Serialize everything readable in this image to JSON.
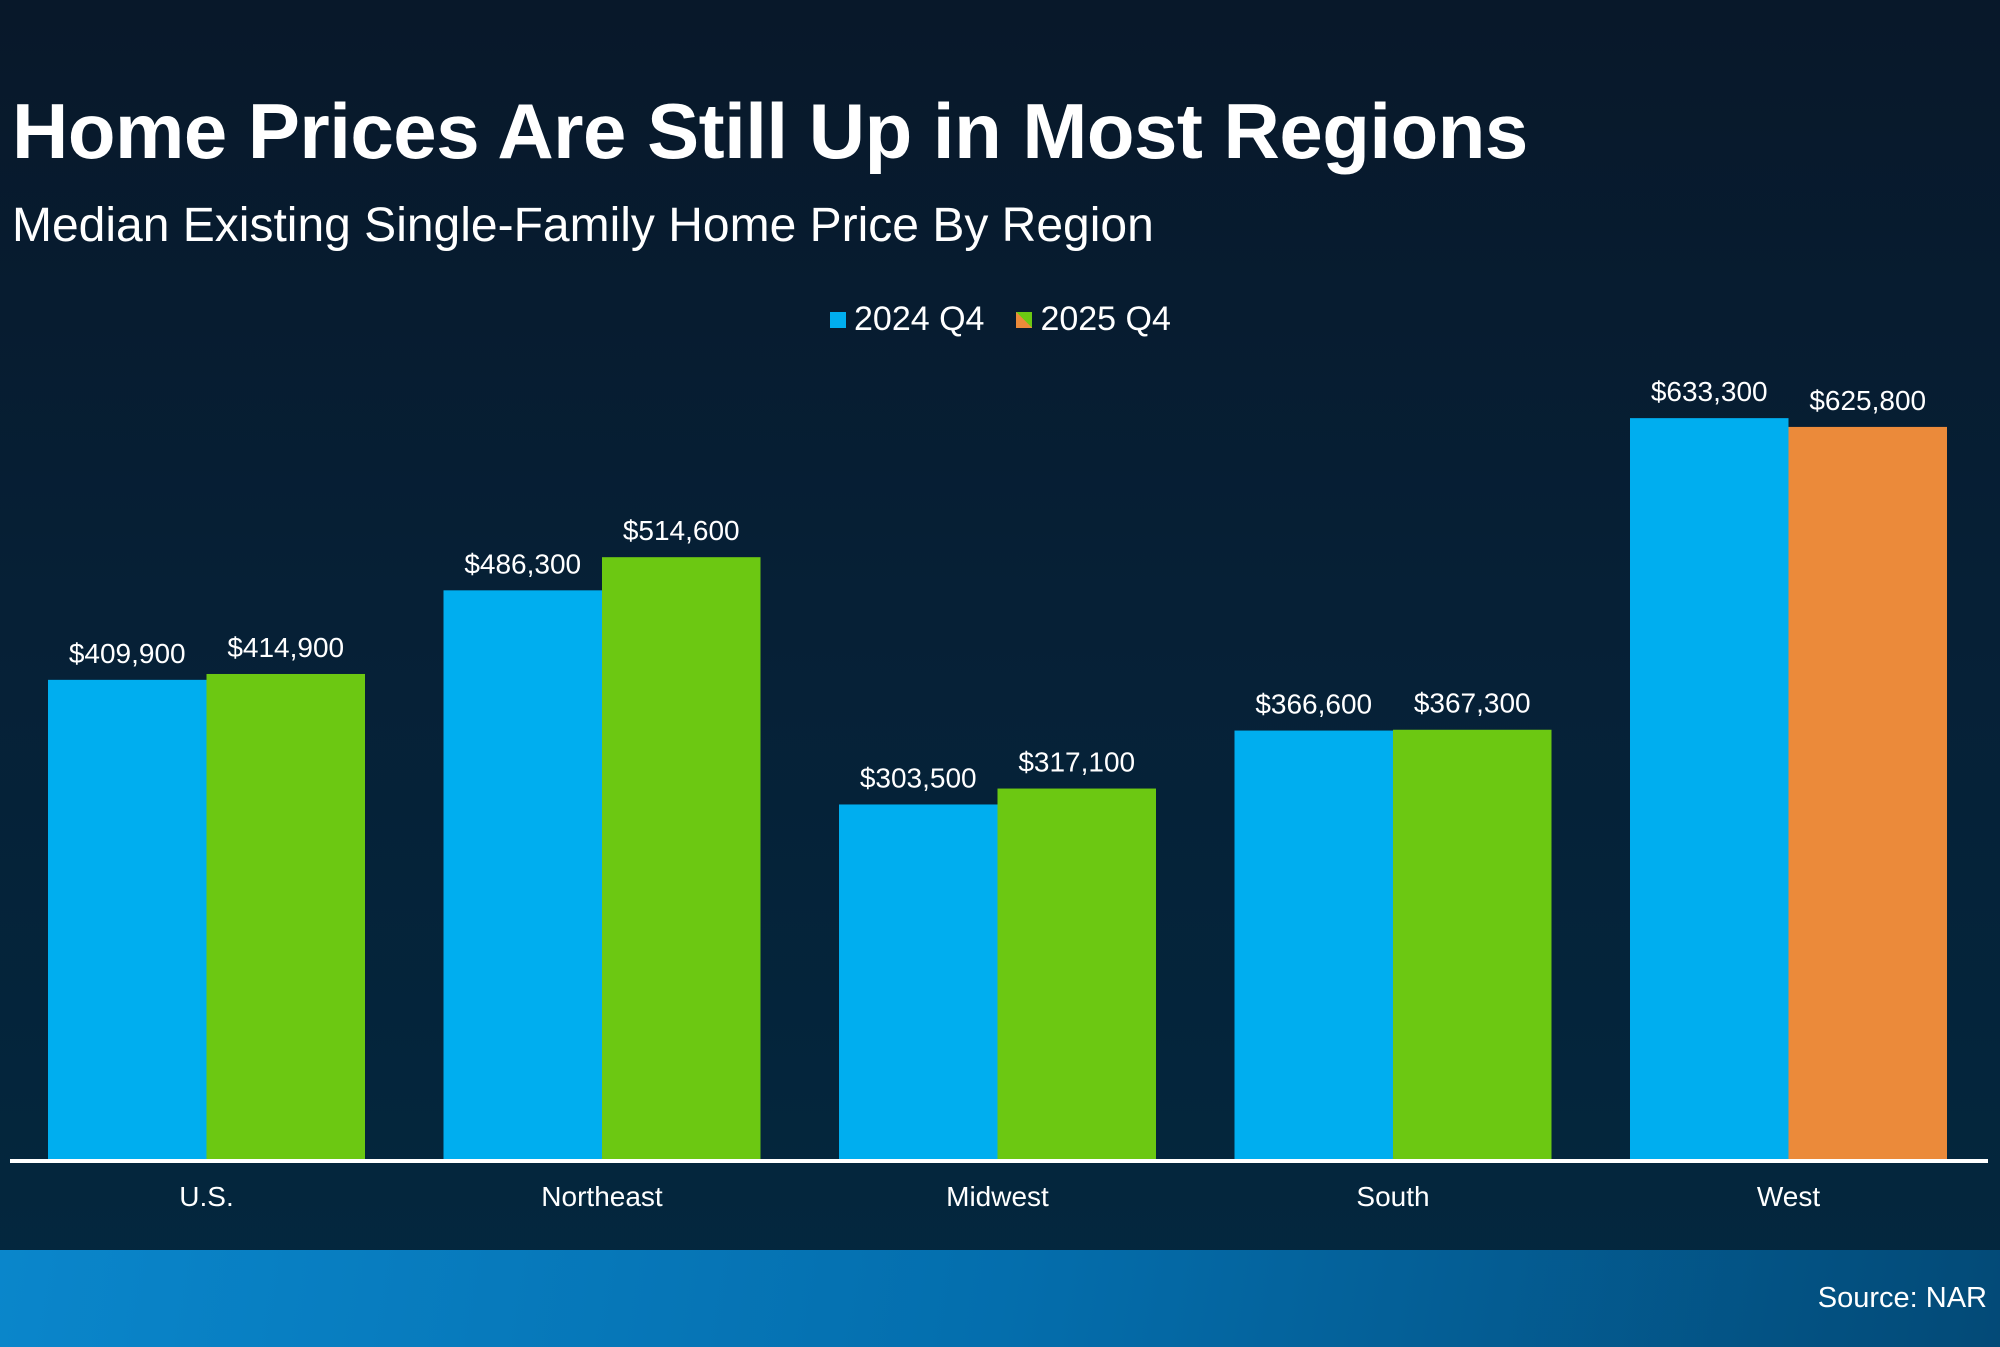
{
  "colors": {
    "series_2024": "#00aeef",
    "series_2025": "#6cc812",
    "series_2025_decline": "#eb8a3a",
    "axis": "#ffffff"
  },
  "chart_data": {
    "type": "bar",
    "title": "Home Prices Are Still Up in Most Regions",
    "subtitle": "Median Existing Single-Family Home Price By Region",
    "categories": [
      "U.S.",
      "Northeast",
      "Midwest",
      "South",
      "West"
    ],
    "series": [
      {
        "name": "2024 Q4",
        "values": [
          409900,
          486300,
          303500,
          366600,
          633300
        ],
        "labels": [
          "$409,900",
          "$486,300",
          "$303,500",
          "$366,600",
          "$633,300"
        ]
      },
      {
        "name": "2025 Q4",
        "values": [
          414900,
          514600,
          317100,
          367300,
          625800
        ],
        "labels": [
          "$414,900",
          "$514,600",
          "$317,100",
          "$367,300",
          "$625,800"
        ]
      }
    ],
    "ylim": [
      0,
      700000
    ],
    "xlabel": "",
    "ylabel": "",
    "grid": false,
    "legend": "top-center"
  },
  "source": "Source: NAR"
}
